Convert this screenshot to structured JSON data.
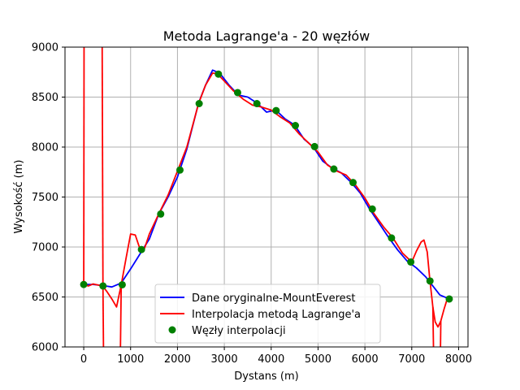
{
  "chart_data": {
    "type": "line",
    "title": "Metoda Lagrange'a - 20 węzłów",
    "xlabel": "Dystans (m)",
    "ylabel": "Wysokość (m)",
    "xlim": [
      -400,
      8200
    ],
    "ylim": [
      6000,
      9000
    ],
    "xticks": [
      0,
      1000,
      2000,
      3000,
      4000,
      5000,
      6000,
      7000,
      8000
    ],
    "yticks": [
      6000,
      6500,
      7000,
      7500,
      8000,
      8500,
      9000
    ],
    "grid": true,
    "legend_position": "bottom-center",
    "colors": {
      "original": "#0000ff",
      "interpolation": "#ff0000",
      "nodes": "#008000",
      "grid": "#b0b0b0"
    },
    "series": [
      {
        "name": "Dane oryginalne-MountEverest",
        "style": "line",
        "x": [
          0,
          200,
          400,
          600,
          800,
          1000,
          1200,
          1400,
          1600,
          1800,
          2000,
          2200,
          2450,
          2600,
          2750,
          2900,
          3100,
          3300,
          3500,
          3700,
          3900,
          4100,
          4300,
          4500,
          4700,
          4900,
          5100,
          5300,
          5500,
          5700,
          5900,
          6100,
          6300,
          6500,
          6700,
          6900,
          7100,
          7300,
          7400,
          7600,
          7800
        ],
        "y": [
          6625,
          6625,
          6615,
          6600,
          6640,
          6780,
          6930,
          7080,
          7330,
          7500,
          7700,
          7980,
          8440,
          8620,
          8770,
          8740,
          8620,
          8520,
          8500,
          8440,
          8350,
          8370,
          8280,
          8220,
          8080,
          8000,
          7860,
          7790,
          7740,
          7650,
          7540,
          7380,
          7240,
          7100,
          6970,
          6860,
          6790,
          6700,
          6640,
          6520,
          6480
        ]
      },
      {
        "name": "Interpolacja metodą Lagrange'a",
        "style": "line",
        "x": [
          0,
          100,
          200,
          300,
          400,
          500,
          600,
          700,
          800,
          900,
          1000,
          1100,
          1200,
          1300,
          1400,
          1600,
          1800,
          2000,
          2200,
          2450,
          2600,
          2750,
          2850,
          3000,
          3200,
          3400,
          3600,
          3800,
          4000,
          4200,
          4400,
          4600,
          4800,
          5000,
          5200,
          5400,
          5600,
          5800,
          6000,
          6200,
          6400,
          6600,
          6800,
          7000,
          7100,
          7200,
          7260,
          7330,
          7380,
          7450,
          7500,
          7560,
          7620,
          7690,
          7750,
          7800
        ],
        "y": [
          6625,
          6610,
          6630,
          6620,
          6612,
          6550,
          6480,
          6400,
          6622,
          6880,
          7130,
          7120,
          6980,
          6990,
          7130,
          7330,
          7520,
          7760,
          8000,
          8435,
          8620,
          8740,
          8735,
          8660,
          8560,
          8480,
          8420,
          8400,
          8370,
          8300,
          8240,
          8130,
          8040,
          7950,
          7820,
          7760,
          7720,
          7620,
          7490,
          7330,
          7200,
          7090,
          6940,
          6850,
          6960,
          7050,
          7070,
          6950,
          6700,
          6400,
          6250,
          6200,
          6260,
          6380,
          6470,
          6480
        ]
      },
      {
        "name": "Węzły interpolacji",
        "style": "markers",
        "x": [
          0,
          411,
          821,
          1232,
          1642,
          2053,
          2463,
          2874,
          3284,
          3695,
          4105,
          4516,
          4926,
          5337,
          5747,
          6158,
          6568,
          6979,
          7389,
          7800
        ],
        "y": [
          6625,
          6610,
          6622,
          6975,
          7330,
          7770,
          8435,
          8730,
          8545,
          8435,
          8365,
          8215,
          8005,
          7780,
          7645,
          7380,
          7090,
          6850,
          6660,
          6480
        ]
      }
    ]
  }
}
